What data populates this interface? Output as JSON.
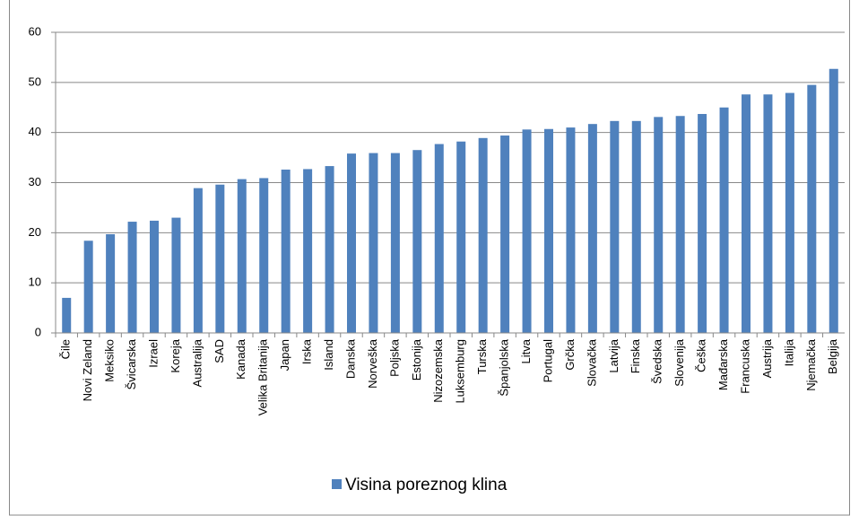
{
  "chart_data": {
    "type": "bar",
    "categories": [
      "Čile",
      "Novi Zeland",
      "Meksiko",
      "Švicarska",
      "Izrael",
      "Koreja",
      "Australija",
      "SAD",
      "Kanada",
      "Velika Britanija",
      "Japan",
      "Irska",
      "Island",
      "Danska",
      "Norveška",
      "Poljska",
      "Estonija",
      "Nizozemska",
      "Luksemburg",
      "Turska",
      "Španjolska",
      "Litva",
      "Portugal",
      "Grčka",
      "Slovačka",
      "Latvija",
      "Finska",
      "Švedska",
      "Slovenija",
      "Češka",
      "Mađarska",
      "Francuska",
      "Austrija",
      "Italija",
      "Njemačka",
      "Belgija"
    ],
    "series": [
      {
        "name": "Visina poreznog klina",
        "color": "#4f81bd",
        "values": [
          7.0,
          18.4,
          19.7,
          22.2,
          22.4,
          23.0,
          28.9,
          29.6,
          30.7,
          30.9,
          32.6,
          32.7,
          33.3,
          35.8,
          35.9,
          35.9,
          36.5,
          37.7,
          38.2,
          38.9,
          39.4,
          40.6,
          40.7,
          41.0,
          41.7,
          42.3,
          42.3,
          43.1,
          43.3,
          43.7,
          45.0,
          47.6,
          47.6,
          47.9,
          49.5,
          52.7
        ]
      }
    ],
    "ylim": [
      0,
      60
    ],
    "yticks": [
      0,
      10,
      20,
      30,
      40,
      50,
      60
    ],
    "grid": true,
    "legend": "bottom"
  }
}
